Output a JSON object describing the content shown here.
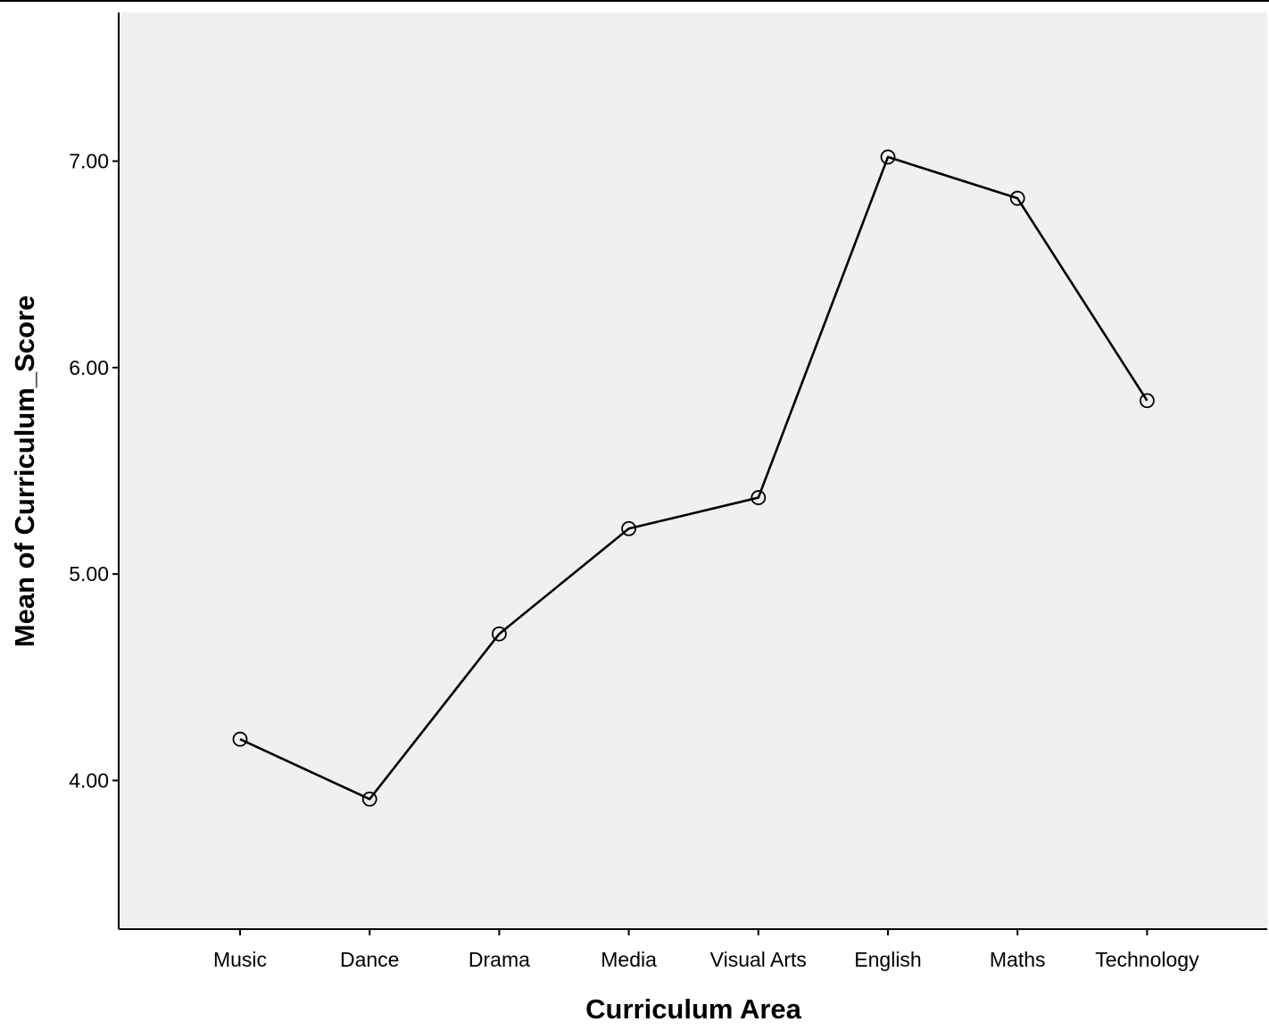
{
  "chart_data": {
    "type": "line",
    "title": "",
    "xlabel": "Curriculum Area",
    "ylabel": "Mean of Curriculum_Score",
    "categories": [
      "Music",
      "Dance",
      "Drama",
      "Media",
      "Visual Arts",
      "English",
      "Maths",
      "Technology"
    ],
    "series": [
      {
        "values": [
          4.2,
          3.91,
          4.71,
          5.22,
          5.37,
          7.02,
          6.82,
          5.84
        ],
        "marker": "open-circle"
      }
    ],
    "ylim": [
      3.28,
      7.72
    ],
    "yticks": [
      "4.00",
      "5.00",
      "6.00",
      "7.00"
    ],
    "grid": false,
    "legend": "none",
    "colors": {
      "plot_background": "#f0f0f0",
      "line": "#000000",
      "marker": "#000000"
    }
  }
}
